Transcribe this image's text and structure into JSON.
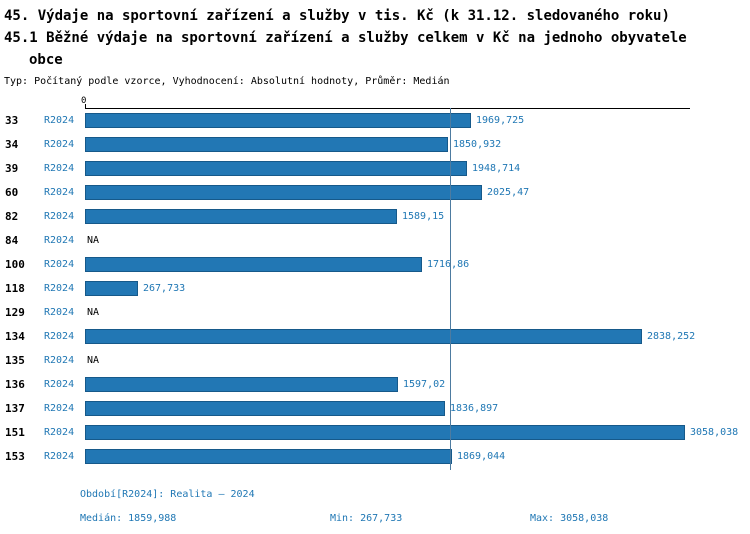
{
  "header": {
    "title_line1": "45. Výdaje na sportovní zařízení a služby v tis. Kč (k 31.12. sledovaného roku)",
    "title_line2": "45.1 Běžné výdaje na sportovní zařízení a služby celkem v Kč na jednoho obyvatele",
    "title_line3": "obce",
    "subtitle": "Typ: Počítaný podle vzorce, Vyhodnocení: Absolutní hodnoty, Průměr: Medián"
  },
  "chart_data": {
    "type": "bar",
    "orientation": "horizontal",
    "series_label": "R2024",
    "categories": [
      "33",
      "34",
      "39",
      "60",
      "82",
      "84",
      "100",
      "118",
      "129",
      "134",
      "135",
      "136",
      "137",
      "151",
      "153"
    ],
    "values": [
      1969.725,
      1850.932,
      1948.714,
      2025.47,
      1589.15,
      null,
      1716.86,
      267.733,
      null,
      2838.252,
      null,
      1597.02,
      1836.897,
      3058.038,
      1869.044
    ],
    "value_labels": [
      "1969,725",
      "1850,932",
      "1948,714",
      "2025,47",
      "1589,15",
      "NA",
      "1716,86",
      "267,733",
      "NA",
      "2838,252",
      "NA",
      "1597,02",
      "1836,897",
      "3058,038",
      "1869,044"
    ],
    "axis_zero_label": "0",
    "xlim": [
      0,
      3058.038
    ],
    "median": 1859.988,
    "bar_color": "#2277b4",
    "label_color": "#1f77b4",
    "legend_position": "none",
    "grid": false
  },
  "footer": {
    "period": "Období[R2024]: Realita – 2024",
    "median": "Medián: 1859,988",
    "min": "Min: 267,733",
    "max": "Max: 3058,038"
  }
}
